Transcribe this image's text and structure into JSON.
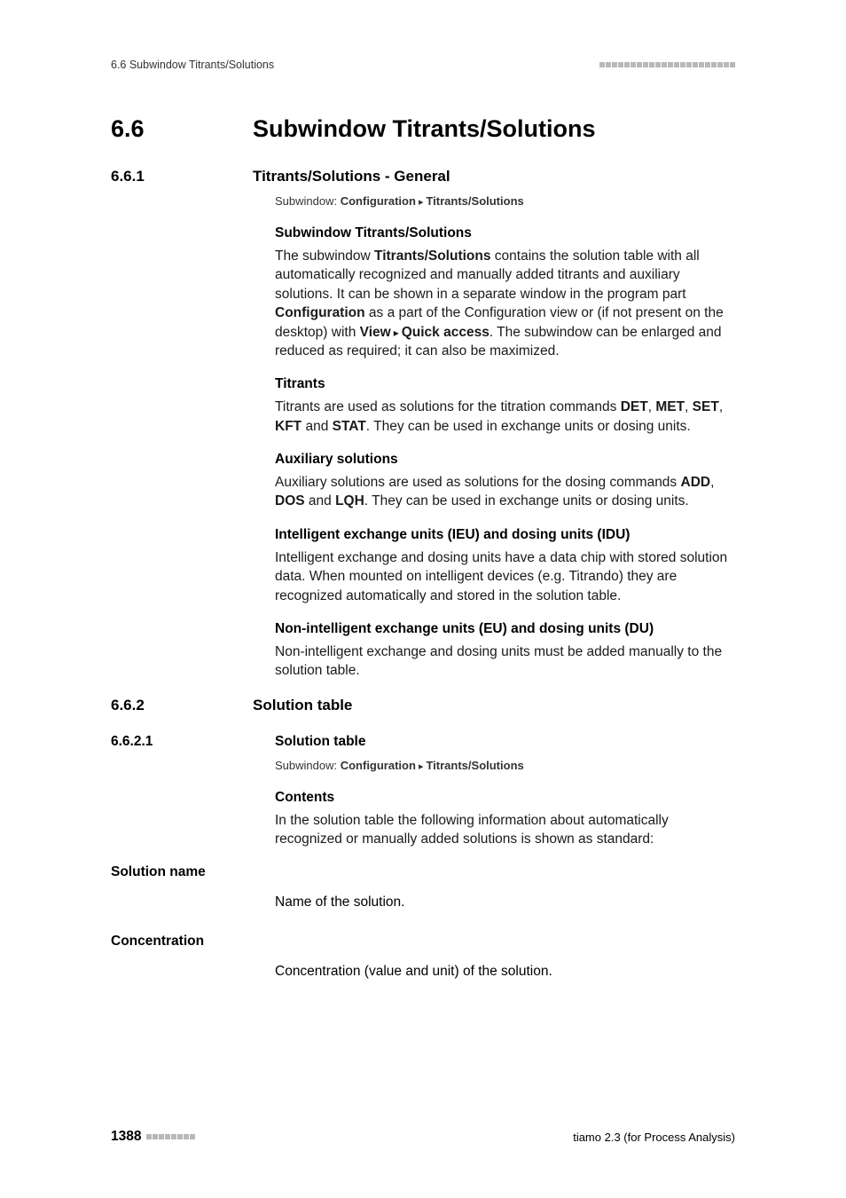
{
  "header": {
    "left": "6.6 Subwindow Titrants/Solutions",
    "square_count": 22
  },
  "section_main": {
    "number": "6.6",
    "title": "Subwindow Titrants/Solutions"
  },
  "section_661": {
    "number": "6.6.1",
    "title": "Titrants/Solutions - General",
    "breadcrumb_label": "Subwindow: ",
    "breadcrumb_a": "Configuration",
    "breadcrumb_b": "Titrants/Solutions",
    "h1": "Subwindow Titrants/Solutions",
    "p1_a": "The subwindow ",
    "p1_b": "Titrants/Solutions",
    "p1_c": " contains the solution table with all automatically recognized and manually added titrants and auxiliary solutions. It can be shown in a separate window in the program part ",
    "p1_d": "Configuration",
    "p1_e": " as a part of the Configuration view or (if not present on the desktop) with ",
    "p1_f": "View",
    "p1_g": "Quick access",
    "p1_h": ". The subwindow can be enlarged and reduced as required; it can also be maximized.",
    "h2": "Titrants",
    "p2_a": "Titrants are used as solutions for the titration commands ",
    "p2_b": "DET",
    "p2_c": ", ",
    "p2_d": "MET",
    "p2_e": ", ",
    "p2_f": "SET",
    "p2_g": ", ",
    "p2_h": "KFT",
    "p2_i": " and ",
    "p2_j": "STAT",
    "p2_k": ". They can be used in exchange units or dosing units.",
    "h3": "Auxiliary solutions",
    "p3_a": "Auxiliary solutions are used as solutions for the dosing commands ",
    "p3_b": "ADD",
    "p3_c": ", ",
    "p3_d": "DOS",
    "p3_e": " and ",
    "p3_f": "LQH",
    "p3_g": ". They can be used in exchange units or dosing units.",
    "h4": "Intelligent exchange units (IEU) and dosing units (IDU)",
    "p4": "Intelligent exchange and dosing units have a data chip with stored solution data. When mounted on intelligent devices (e.g. Titrando) they are recognized automatically and stored in the solution table.",
    "h5": "Non-intelligent exchange units (EU) and dosing units (DU)",
    "p5": "Non-intelligent exchange and dosing units must be added manually to the solution table."
  },
  "section_662": {
    "number": "6.6.2",
    "title": "Solution table"
  },
  "section_6621": {
    "number": "6.6.2.1",
    "title": "Solution table",
    "breadcrumb_label": "Subwindow: ",
    "breadcrumb_a": "Configuration",
    "breadcrumb_b": "Titrants/Solutions",
    "h1": "Contents",
    "p1": "In the solution table the following information about automatically recognized or manually added solutions is shown as standard:",
    "term1": "Solution name",
    "desc1": "Name of the solution.",
    "term2": "Concentration",
    "desc2": "Concentration (value and unit) of the solution."
  },
  "footer": {
    "page_number": "1388",
    "square_count": 8,
    "right": "tiamo 2.3 (for Process Analysis)"
  }
}
